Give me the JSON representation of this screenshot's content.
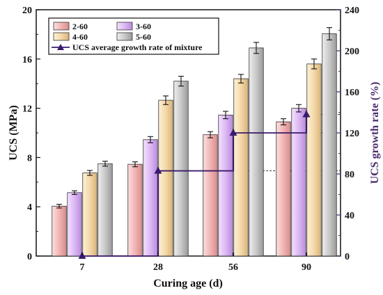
{
  "chart_data": {
    "type": "bar",
    "categories": [
      "7",
      "28",
      "56",
      "90"
    ],
    "series": [
      {
        "name": "2-60",
        "values": [
          4.05,
          7.45,
          9.85,
          10.9
        ],
        "errors": [
          0.15,
          0.2,
          0.25,
          0.25
        ]
      },
      {
        "name": "3-60",
        "values": [
          5.15,
          9.45,
          11.45,
          12.0
        ],
        "errors": [
          0.15,
          0.25,
          0.3,
          0.3
        ]
      },
      {
        "name": "4-60",
        "values": [
          6.75,
          12.65,
          14.4,
          15.6
        ],
        "errors": [
          0.2,
          0.35,
          0.35,
          0.4
        ]
      },
      {
        "name": "5-60",
        "values": [
          7.5,
          14.2,
          16.9,
          18.05
        ],
        "errors": [
          0.2,
          0.4,
          0.45,
          0.5
        ]
      }
    ],
    "line_series": {
      "name": "UCS average growth rate of mixture",
      "values": [
        0,
        83,
        120,
        138
      ]
    },
    "xlabel": "Curing age (d)",
    "ylabel": "UCS (MPa)",
    "y2label": "UCS growth rate (%)",
    "ylim": [
      0,
      20
    ],
    "yticks": [
      "0",
      "4",
      "8",
      "12",
      "16",
      "20"
    ],
    "y2lim": [
      0,
      240
    ],
    "y2ticks": [
      "0",
      "40",
      "80",
      "120",
      "160",
      "200",
      "240"
    ],
    "legend_position": "top-left",
    "colors": {
      "2-60": "#f2b4b4",
      "3-60": "#dcb8f4",
      "4-60": "#f4d9a8",
      "5-60": "#c8c8c8",
      "line": "#3a1a6e",
      "y2axis": "#4b2a6e"
    }
  }
}
